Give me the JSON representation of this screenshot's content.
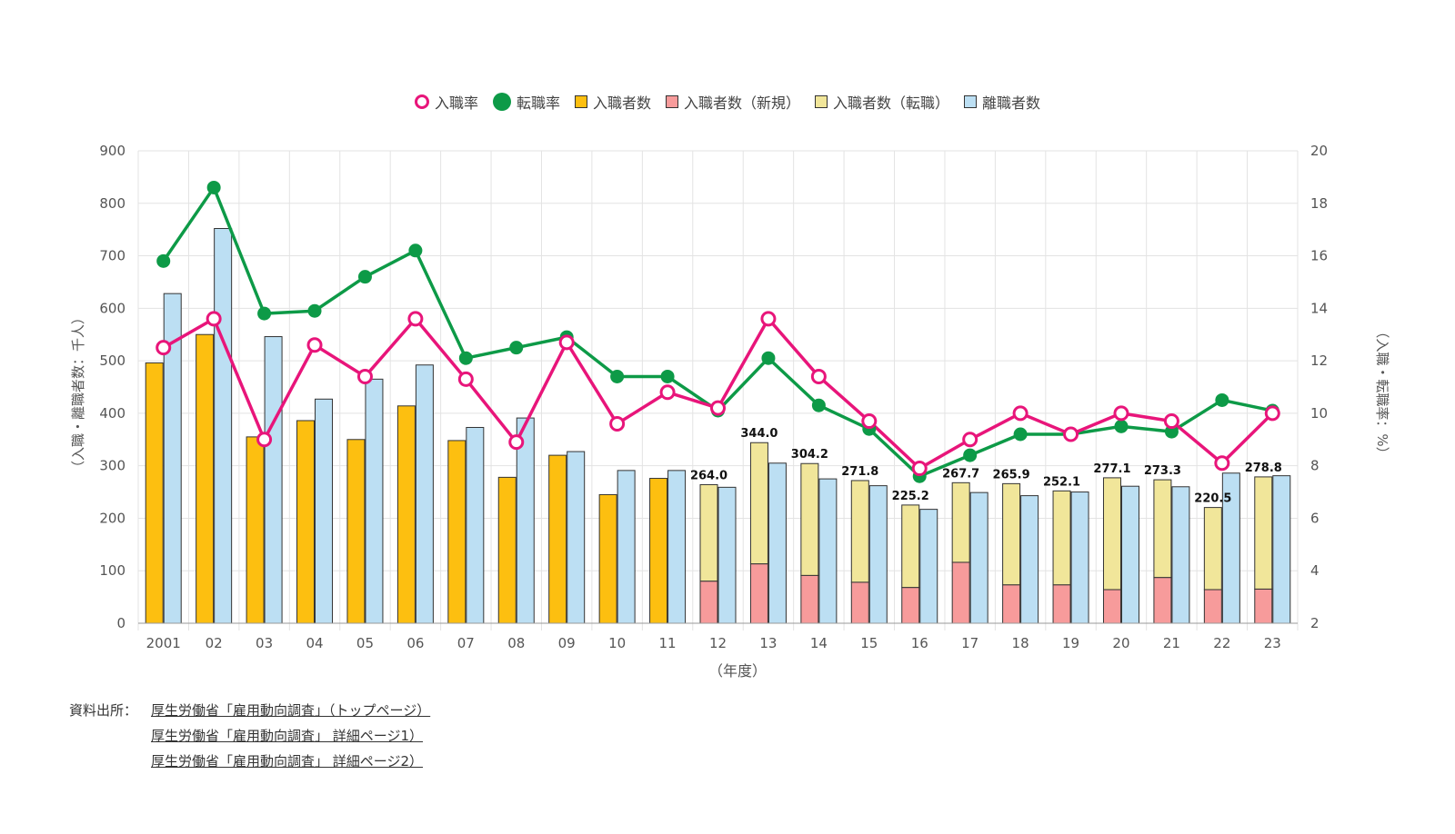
{
  "legend": {
    "entry_rate": "入職率",
    "turnover_rate": "転職率",
    "hires": "入職者数",
    "hires_new": "入職者数（新規）",
    "hires_job_change": "入職者数（転職）",
    "separations": "離職者数"
  },
  "colors": {
    "entry_rate": "#e8157a",
    "turnover_rate": "#0d9a47",
    "hires": "#fdbf10",
    "hires_new": "#f79b9b",
    "hires_job_change": "#f1e69a",
    "separations": "#bcdff3",
    "bar_outline": "#333333",
    "grid": "#e3e3e3"
  },
  "sources": {
    "label": "資料出所：",
    "links": [
      "厚生労働省「雇用動向調査」（トップページ）",
      "厚生労働省「雇用動向調査」 詳細ページ1）",
      "厚生労働省「雇用動向調査」 詳細ページ2）"
    ]
  },
  "chart_data": {
    "type": "bar",
    "xlabel": "（年度）",
    "ylabel_left": "（入職・離職者数：千人）",
    "ylabel_right": "（入職・転職率：%）",
    "ylim_left": [
      0,
      900
    ],
    "ylim_right": [
      2,
      20
    ],
    "yticks_left": [
      0,
      100,
      200,
      300,
      400,
      500,
      600,
      700,
      800,
      900
    ],
    "yticks_right": [
      2,
      4,
      6,
      8,
      10,
      12,
      14,
      16,
      18,
      20
    ],
    "grid": true,
    "legend_position": "top-center",
    "categories": [
      "2001",
      "02",
      "03",
      "04",
      "05",
      "06",
      "07",
      "08",
      "09",
      "10",
      "11",
      "12",
      "13",
      "14",
      "15",
      "16",
      "17",
      "18",
      "19",
      "20",
      "21",
      "22",
      "23"
    ],
    "hires": [
      496,
      550,
      355,
      386,
      350,
      414,
      348,
      278,
      320,
      245,
      276,
      null,
      null,
      null,
      null,
      null,
      null,
      null,
      null,
      null,
      null,
      null,
      null
    ],
    "hires_new": [
      null,
      null,
      null,
      null,
      null,
      null,
      null,
      null,
      null,
      null,
      null,
      80,
      113,
      91,
      78,
      68,
      116,
      73,
      73,
      64,
      87,
      64,
      65
    ],
    "hires_total_breakdown": [
      null,
      null,
      null,
      null,
      null,
      null,
      null,
      null,
      null,
      null,
      null,
      264.0,
      344.0,
      304.2,
      271.8,
      225.2,
      267.7,
      265.9,
      252.1,
      277.1,
      273.3,
      220.5,
      278.8
    ],
    "hires_total_labels": [
      "",
      "",
      "",
      "",
      "",
      "",
      "",
      "",
      "",
      "",
      "",
      "264.0",
      "344.0",
      "304.2",
      "271.8",
      "225.2",
      "267.7",
      "265.9",
      "252.1",
      "277.1",
      "273.3",
      "220.5",
      "278.8"
    ],
    "separations": [
      628,
      752,
      546,
      427,
      465,
      492,
      373,
      391,
      327,
      291,
      291,
      259,
      305,
      275,
      262,
      217,
      249,
      243,
      250,
      261,
      260,
      286,
      281
    ],
    "entry_rate": [
      12.5,
      13.6,
      9.0,
      12.6,
      11.4,
      13.6,
      11.3,
      8.9,
      12.7,
      9.6,
      10.8,
      10.2,
      13.6,
      11.4,
      9.7,
      7.9,
      9.0,
      10.0,
      9.2,
      10.0,
      9.7,
      8.1,
      10.0
    ],
    "turnover_rate": [
      15.8,
      18.6,
      13.8,
      13.9,
      15.2,
      16.2,
      12.1,
      12.5,
      12.9,
      11.4,
      11.4,
      10.1,
      12.1,
      10.3,
      9.4,
      7.6,
      8.4,
      9.2,
      9.2,
      9.5,
      9.3,
      10.5,
      10.1
    ]
  }
}
